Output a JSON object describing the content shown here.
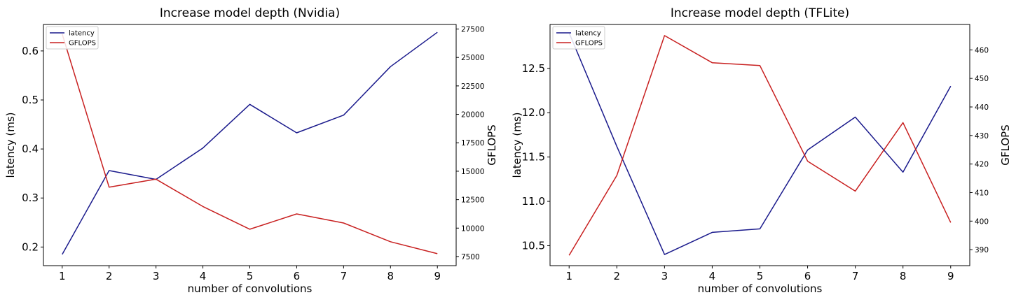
{
  "figure": "two line charts: latency and GFLOPS vs number of convolutions",
  "chart_data": [
    {
      "type": "line",
      "title": "Increase model depth (Nvidia)",
      "xlabel": "number of convolutions",
      "ylabel": "latency (ms)",
      "y2label": "GFLOPS",
      "x": [
        1,
        2,
        3,
        4,
        5,
        6,
        7,
        8,
        9
      ],
      "xticks": [
        1,
        2,
        3,
        4,
        5,
        6,
        7,
        8,
        9
      ],
      "xlim": [
        0.6,
        9.4
      ],
      "ylim": [
        0.162,
        0.654
      ],
      "yticks": [
        0.2,
        0.3,
        0.4,
        0.5,
        0.6
      ],
      "y2lim": [
        6700,
        27900
      ],
      "y2ticks": [
        7500,
        10000,
        12500,
        15000,
        17500,
        20000,
        22500,
        25000,
        27500
      ],
      "legend_position": "top-left",
      "grid": false,
      "series": [
        {
          "name": "latency",
          "axis": "left",
          "color": "#1a1a8c",
          "values": [
            0.185,
            0.356,
            0.338,
            0.402,
            0.491,
            0.433,
            0.469,
            0.568,
            0.638
          ]
        },
        {
          "name": "GFLOPS",
          "axis": "right",
          "color": "#c82020",
          "values": [
            27050,
            13600,
            14300,
            11900,
            9900,
            11250,
            10450,
            8800,
            7750
          ]
        }
      ]
    },
    {
      "type": "line",
      "title": "Increase model depth (TFLite)",
      "xlabel": "number of convolutions",
      "ylabel": "latency (ms)",
      "y2label": "GFLOPS",
      "x": [
        1,
        2,
        3,
        4,
        5,
        6,
        7,
        8,
        9
      ],
      "xticks": [
        1,
        2,
        3,
        4,
        5,
        6,
        7,
        8,
        9
      ],
      "xlim": [
        0.6,
        9.4
      ],
      "ylim": [
        10.275,
        12.995
      ],
      "yticks": [
        10.5,
        11.0,
        11.5,
        12.0,
        12.5
      ],
      "y2lim": [
        384.4,
        468.9
      ],
      "y2ticks": [
        390,
        400,
        410,
        420,
        430,
        440,
        450,
        460
      ],
      "legend_position": "top-left",
      "grid": false,
      "series": [
        {
          "name": "latency",
          "axis": "left",
          "color": "#1a1a8c",
          "values": [
            12.9,
            11.62,
            10.4,
            10.65,
            10.69,
            11.58,
            11.95,
            11.33,
            12.3
          ]
        },
        {
          "name": "GFLOPS",
          "axis": "right",
          "color": "#c82020",
          "values": [
            388,
            416,
            465,
            455.5,
            454.5,
            421,
            410.5,
            434.5,
            399.5
          ]
        }
      ]
    }
  ]
}
